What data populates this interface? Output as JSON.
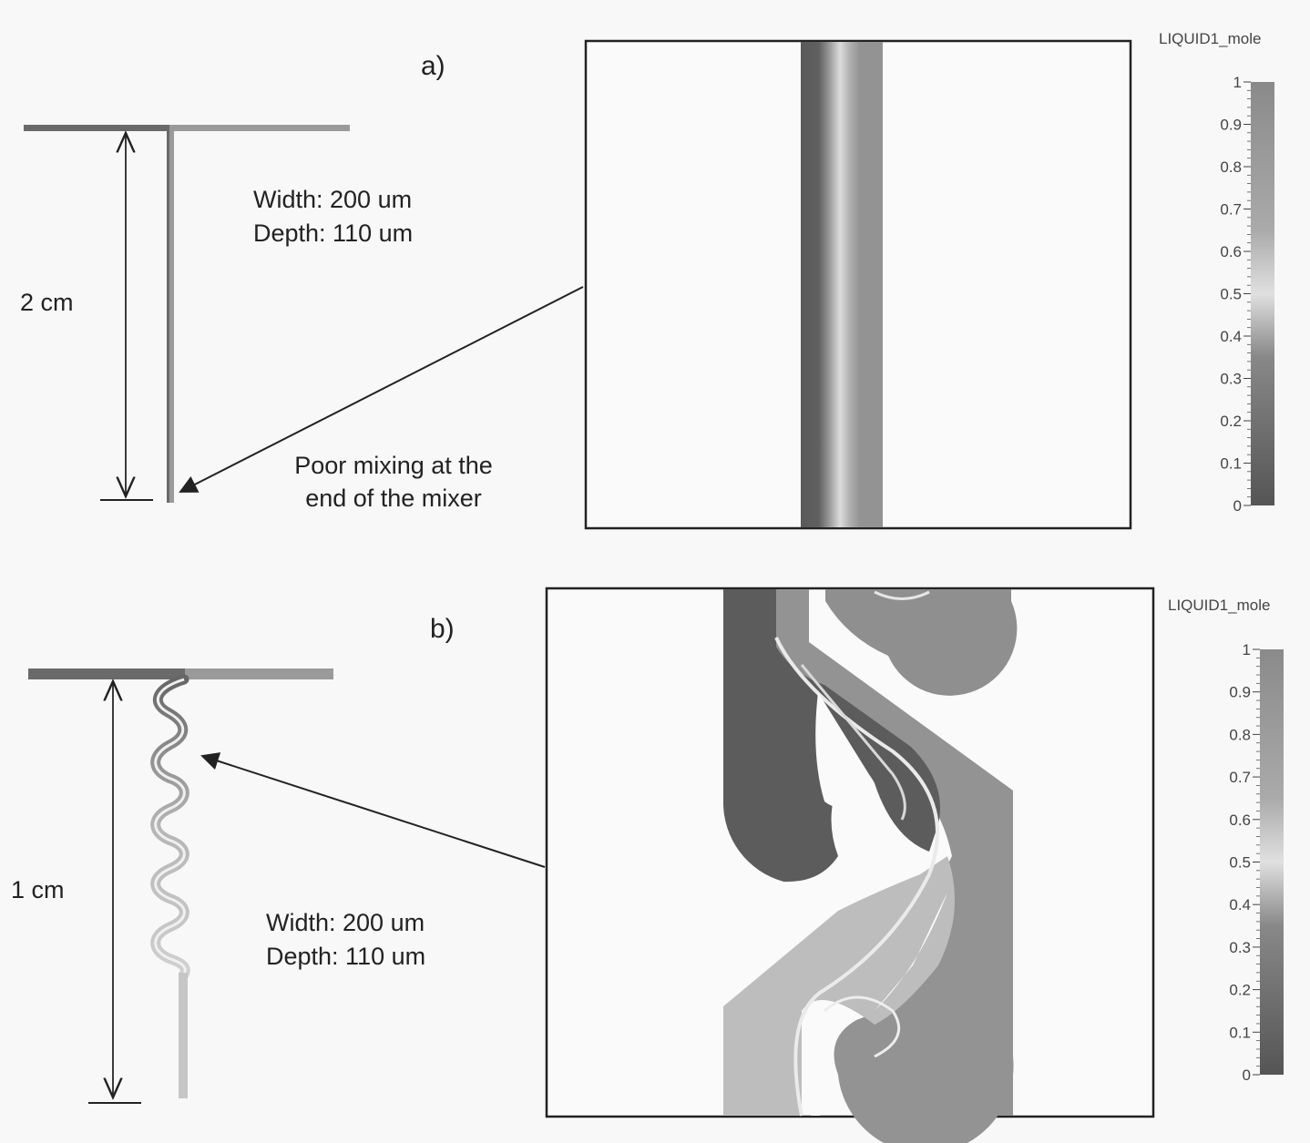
{
  "panel_a": {
    "label": "a)",
    "length_label": "2 cm",
    "width_text": "Width: 200 um",
    "depth_text": "Depth: 110 um",
    "annotation_line1": "Poor mixing at the",
    "annotation_line2": "end of the mixer",
    "colorbar_title": "LIQUID1_mole"
  },
  "panel_b": {
    "label": "b)",
    "length_label": "1 cm",
    "width_text": "Width: 200 um",
    "depth_text": "Depth: 110 um",
    "colorbar_title": "LIQUID1_mole"
  },
  "colorbar_ticks": [
    "0",
    "0.1",
    "0.2",
    "0.3",
    "0.4",
    "0.5",
    "0.6",
    "0.7",
    "0.8",
    "0.9",
    "1"
  ],
  "colors": {
    "dark_fluid": "#5f5f5f",
    "light_fluid": "#949494",
    "mixed_fluid": "#c9c9c9",
    "frame": "#222222"
  }
}
